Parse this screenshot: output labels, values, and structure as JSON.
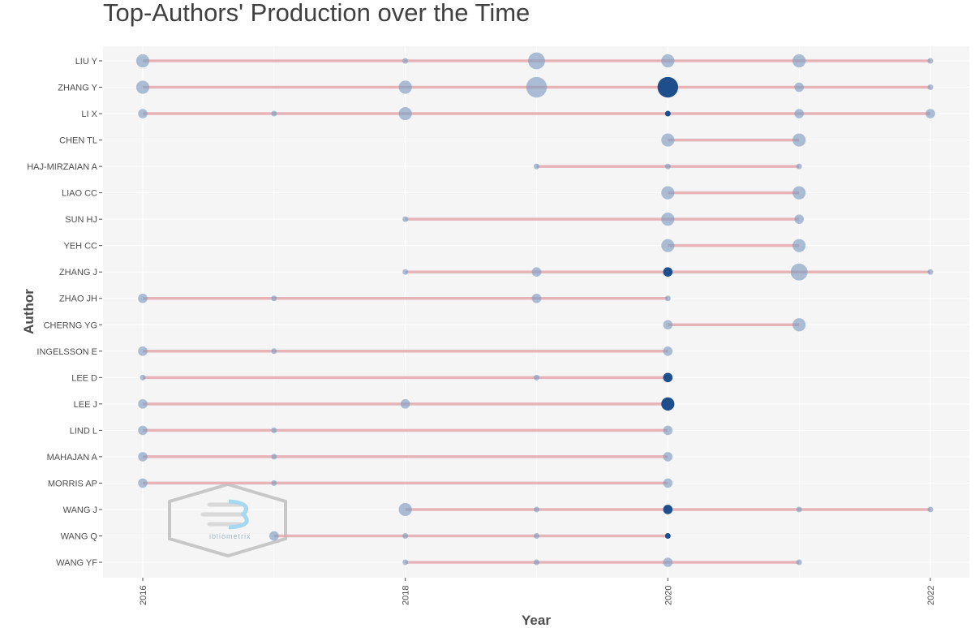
{
  "chart_data": {
    "type": "scatter",
    "title": "Top-Authors' Production over the Time",
    "xlabel": "Year",
    "ylabel": "Author",
    "xlim": [
      2015.7,
      2022.3
    ],
    "x_ticks": [
      2016,
      2018,
      2020,
      2022
    ],
    "grid": true,
    "authors": [
      {
        "name": "LIU Y",
        "points": [
          {
            "year": 2016,
            "n": 3
          },
          {
            "year": 2018,
            "n": 1
          },
          {
            "year": 2019,
            "n": 4
          },
          {
            "year": 2020,
            "n": 3
          },
          {
            "year": 2021,
            "n": 3
          },
          {
            "year": 2022,
            "n": 1
          }
        ]
      },
      {
        "name": "ZHANG Y",
        "points": [
          {
            "year": 2016,
            "n": 3
          },
          {
            "year": 2018,
            "n": 3
          },
          {
            "year": 2019,
            "n": 5
          },
          {
            "year": 2020,
            "n": 5
          },
          {
            "year": 2021,
            "n": 2
          },
          {
            "year": 2022,
            "n": 1
          }
        ]
      },
      {
        "name": "LI X",
        "points": [
          {
            "year": 2016,
            "n": 2
          },
          {
            "year": 2017,
            "n": 1
          },
          {
            "year": 2018,
            "n": 3
          },
          {
            "year": 2020,
            "n": 1
          },
          {
            "year": 2021,
            "n": 2
          },
          {
            "year": 2022,
            "n": 2
          }
        ]
      },
      {
        "name": "CHEN TL",
        "points": [
          {
            "year": 2020,
            "n": 3
          },
          {
            "year": 2021,
            "n": 3
          }
        ]
      },
      {
        "name": "HAJ-MIRZAIAN A",
        "points": [
          {
            "year": 2019,
            "n": 1
          },
          {
            "year": 2020,
            "n": 1
          },
          {
            "year": 2021,
            "n": 1
          }
        ]
      },
      {
        "name": "LIAO CC",
        "points": [
          {
            "year": 2020,
            "n": 3
          },
          {
            "year": 2021,
            "n": 3
          }
        ]
      },
      {
        "name": "SUN HJ",
        "points": [
          {
            "year": 2018,
            "n": 1
          },
          {
            "year": 2020,
            "n": 3
          },
          {
            "year": 2021,
            "n": 2
          }
        ]
      },
      {
        "name": "YEH CC",
        "points": [
          {
            "year": 2020,
            "n": 3
          },
          {
            "year": 2021,
            "n": 3
          }
        ]
      },
      {
        "name": "ZHANG J",
        "points": [
          {
            "year": 2018,
            "n": 1
          },
          {
            "year": 2019,
            "n": 2
          },
          {
            "year": 2020,
            "n": 2
          },
          {
            "year": 2021,
            "n": 4
          },
          {
            "year": 2022,
            "n": 1
          }
        ]
      },
      {
        "name": "ZHAO JH",
        "points": [
          {
            "year": 2016,
            "n": 2
          },
          {
            "year": 2017,
            "n": 1
          },
          {
            "year": 2019,
            "n": 2
          },
          {
            "year": 2020,
            "n": 1
          }
        ]
      },
      {
        "name": "CHERNG YG",
        "points": [
          {
            "year": 2020,
            "n": 2
          },
          {
            "year": 2021,
            "n": 3
          }
        ]
      },
      {
        "name": "INGELSSON E",
        "points": [
          {
            "year": 2016,
            "n": 2
          },
          {
            "year": 2017,
            "n": 1
          },
          {
            "year": 2020,
            "n": 2
          }
        ]
      },
      {
        "name": "LEE D",
        "points": [
          {
            "year": 2016,
            "n": 1
          },
          {
            "year": 2019,
            "n": 1
          },
          {
            "year": 2020,
            "n": 2
          }
        ]
      },
      {
        "name": "LEE J",
        "points": [
          {
            "year": 2016,
            "n": 2
          },
          {
            "year": 2018,
            "n": 2
          },
          {
            "year": 2020,
            "n": 3
          }
        ]
      },
      {
        "name": "LIND L",
        "points": [
          {
            "year": 2016,
            "n": 2
          },
          {
            "year": 2017,
            "n": 1
          },
          {
            "year": 2020,
            "n": 2
          }
        ]
      },
      {
        "name": "MAHAJAN A",
        "points": [
          {
            "year": 2016,
            "n": 2
          },
          {
            "year": 2017,
            "n": 1
          },
          {
            "year": 2020,
            "n": 2
          }
        ]
      },
      {
        "name": "MORRIS AP",
        "points": [
          {
            "year": 2016,
            "n": 2
          },
          {
            "year": 2017,
            "n": 1
          },
          {
            "year": 2020,
            "n": 2
          }
        ]
      },
      {
        "name": "WANG J",
        "points": [
          {
            "year": 2018,
            "n": 3
          },
          {
            "year": 2019,
            "n": 1
          },
          {
            "year": 2020,
            "n": 2
          },
          {
            "year": 2021,
            "n": 1
          },
          {
            "year": 2022,
            "n": 1
          }
        ]
      },
      {
        "name": "WANG Q",
        "points": [
          {
            "year": 2017,
            "n": 2
          },
          {
            "year": 2018,
            "n": 1
          },
          {
            "year": 2019,
            "n": 1
          },
          {
            "year": 2020,
            "n": 1
          }
        ]
      },
      {
        "name": "WANG YF",
        "points": [
          {
            "year": 2018,
            "n": 1
          },
          {
            "year": 2019,
            "n": 1
          },
          {
            "year": 2020,
            "n": 2
          },
          {
            "year": 2021,
            "n": 1
          }
        ]
      }
    ],
    "dark_points": [
      {
        "author": "ZHANG Y",
        "year": 2020
      },
      {
        "author": "LI X",
        "year": 2020
      },
      {
        "author": "ZHANG J",
        "year": 2020
      },
      {
        "author": "LEE D",
        "year": 2020
      },
      {
        "author": "LEE J",
        "year": 2020
      },
      {
        "author": "WANG J",
        "year": 2020
      },
      {
        "author": "WANG Q",
        "year": 2020
      }
    ]
  },
  "colors": {
    "panel_bg": "#f5f5f5",
    "grid": "#ffffff",
    "segment": "#e3a8ac",
    "point_light": "#7f9cc2",
    "point_dark": "#1e4e8c"
  },
  "watermark": {
    "icon": "bibliometrix-hexagon-logo",
    "text": "ibliometrix"
  }
}
